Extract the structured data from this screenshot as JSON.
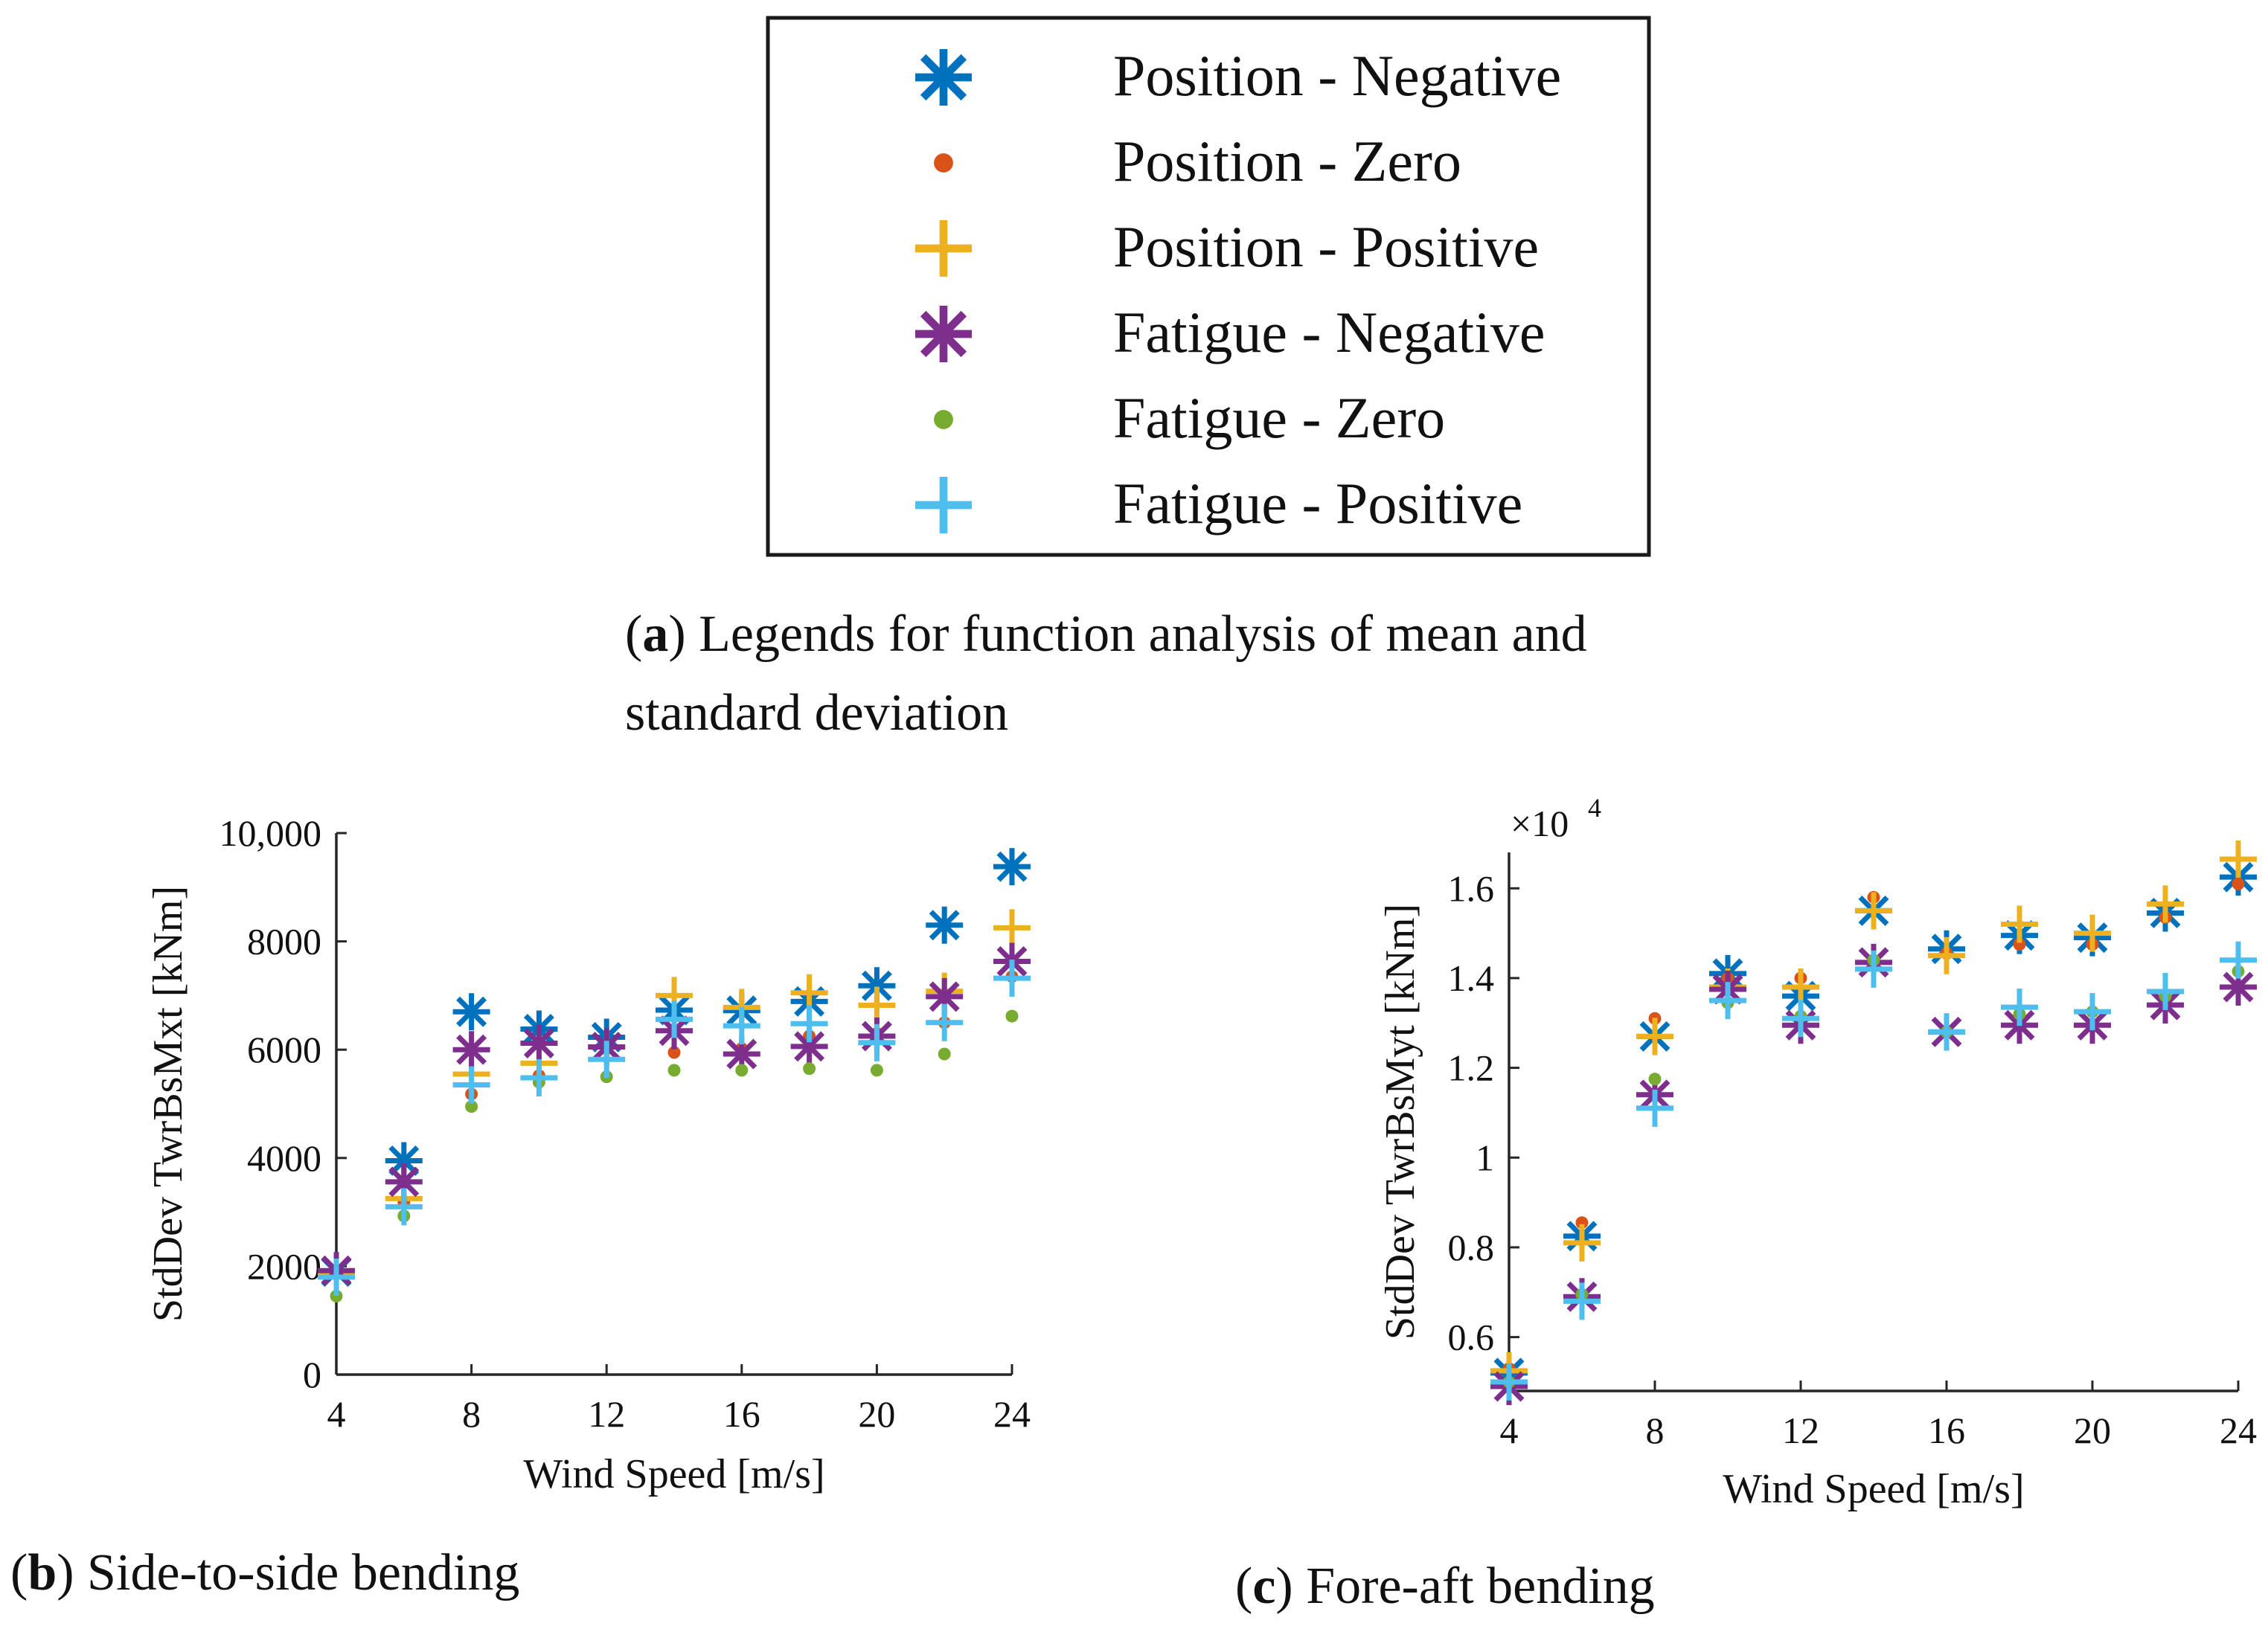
{
  "legend": {
    "entries": [
      {
        "label": "Position - Negative",
        "marker": "asterisk",
        "color": "#0072BD"
      },
      {
        "label": "Position - Zero",
        "marker": "dot",
        "color": "#D95319"
      },
      {
        "label": "Position - Positive",
        "marker": "plus",
        "color": "#EDB120"
      },
      {
        "label": "Fatigue - Negative",
        "marker": "asterisk",
        "color": "#7E2F8E"
      },
      {
        "label": "Fatigue - Zero",
        "marker": "dot",
        "color": "#77AC30"
      },
      {
        "label": "Fatigue - Positive",
        "marker": "plus",
        "color": "#4DBEEE"
      }
    ]
  },
  "captions": {
    "a": {
      "letter": "a",
      "line1": ") Legends for function analysis of mean and",
      "line2": "standard deviation"
    },
    "b": {
      "letter": "b",
      "text": ") Side-to-side bending"
    },
    "c": {
      "letter": "c",
      "text": ") Fore-aft bending"
    }
  },
  "chart_data": [
    {
      "id": "b",
      "type": "scatter",
      "title": "",
      "xlabel": "Wind Speed [m/s]",
      "ylabel": "StdDev TwrBsMxt [kNm]",
      "xlim": [
        4,
        24
      ],
      "ylim": [
        0,
        10000
      ],
      "xticks": [
        4,
        8,
        12,
        16,
        20,
        24
      ],
      "xtick_labels": [
        "4",
        "8",
        "12",
        "16",
        "20",
        "24"
      ],
      "yticks": [
        0,
        2000,
        4000,
        6000,
        8000,
        10000
      ],
      "ytick_labels": [
        "0",
        "2000",
        "4000",
        "6000",
        "8000",
        "10,000"
      ],
      "exponent_label": "",
      "x": [
        4,
        6,
        8,
        10,
        12,
        14,
        16,
        18,
        20,
        22,
        24
      ],
      "series": [
        {
          "name": "Position - Negative",
          "values": [
            1900,
            3950,
            6700,
            6380,
            6230,
            6730,
            6720,
            6890,
            7180,
            8300,
            9380
          ]
        },
        {
          "name": "Position - Zero",
          "values": [
            1920,
            3180,
            5180,
            5520,
            6020,
            5950,
            6020,
            6250,
            6300,
            6500,
            7350
          ]
        },
        {
          "name": "Position - Positive",
          "values": [
            1850,
            3250,
            5550,
            5750,
            6050,
            7000,
            6780,
            7050,
            6820,
            7080,
            8250
          ]
        },
        {
          "name": "Fatigue - Negative",
          "values": [
            1920,
            3560,
            6000,
            6120,
            6050,
            6350,
            5920,
            6060,
            6250,
            6980,
            7630
          ]
        },
        {
          "name": "Fatigue - Zero",
          "values": [
            1450,
            2930,
            4950,
            5400,
            5500,
            5620,
            5620,
            5650,
            5620,
            5920,
            6620
          ]
        },
        {
          "name": "Fatigue - Positive",
          "values": [
            1800,
            3100,
            5350,
            5480,
            5820,
            6560,
            6440,
            6480,
            6130,
            6500,
            7320
          ]
        }
      ]
    },
    {
      "id": "c",
      "type": "scatter",
      "title": "",
      "xlabel": "Wind Speed [m/s]",
      "ylabel": "StdDev TwrBsMyt [kNm]",
      "xlim": [
        4,
        24
      ],
      "ylim": [
        0.48,
        1.68
      ],
      "xticks": [
        4,
        8,
        12,
        16,
        20,
        24
      ],
      "xtick_labels": [
        "4",
        "8",
        "12",
        "16",
        "20",
        "24"
      ],
      "yticks": [
        0.6,
        0.8,
        1.0,
        1.2,
        1.4,
        1.6
      ],
      "ytick_labels": [
        "0.6",
        "0.8",
        "1",
        "1.2",
        "1.4",
        "1.6"
      ],
      "exponent_label": "×10",
      "exponent_power": "4",
      "x": [
        4,
        6,
        8,
        10,
        12,
        14,
        16,
        18,
        20,
        22,
        24
      ],
      "series": [
        {
          "name": "Position - Negative",
          "values": [
            0.52,
            0.825,
            1.27,
            1.41,
            1.36,
            1.55,
            1.465,
            1.495,
            1.49,
            1.545,
            1.625
          ]
        },
        {
          "name": "Position - Zero",
          "values": [
            0.53,
            0.855,
            1.31,
            1.4,
            1.4,
            1.58,
            1.455,
            1.475,
            1.475,
            1.535,
            1.61
          ]
        },
        {
          "name": "Position - Positive",
          "values": [
            0.525,
            0.81,
            1.27,
            1.38,
            1.38,
            1.55,
            1.45,
            1.52,
            1.5,
            1.565,
            1.665
          ]
        },
        {
          "name": "Fatigue - Negative",
          "values": [
            0.49,
            0.69,
            1.14,
            1.375,
            1.295,
            1.435,
            1.28,
            1.295,
            1.295,
            1.34,
            1.38
          ]
        },
        {
          "name": "Fatigue - Zero",
          "values": [
            0.5,
            0.695,
            1.175,
            1.345,
            1.315,
            1.44,
            1.28,
            1.32,
            1.325,
            1.36,
            1.415
          ]
        },
        {
          "name": "Fatigue - Positive",
          "values": [
            0.5,
            0.68,
            1.11,
            1.35,
            1.31,
            1.42,
            1.28,
            1.335,
            1.325,
            1.37,
            1.44
          ]
        }
      ]
    }
  ]
}
